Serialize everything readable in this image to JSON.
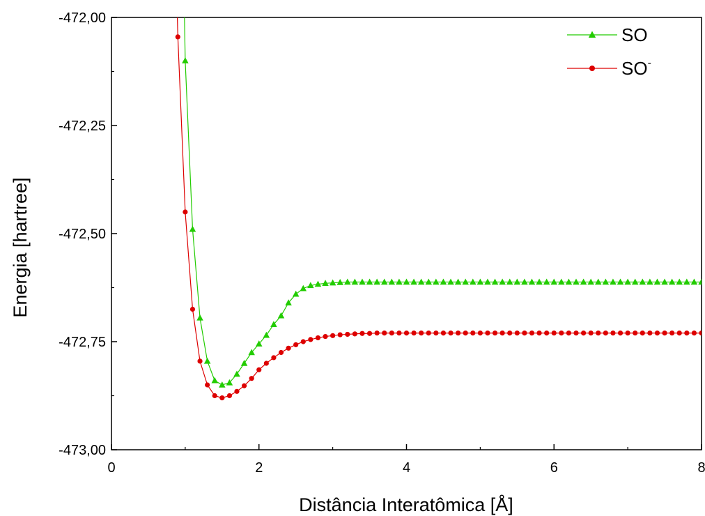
{
  "chart_data": {
    "type": "line",
    "xlabel": "Distância Interatômica [Å]",
    "ylabel": "Energia [hartree]",
    "xlim": [
      0,
      8
    ],
    "ylim": [
      -473.0,
      -472.0
    ],
    "x_ticks": [
      0,
      2,
      4,
      6,
      8
    ],
    "y_ticks": [
      -473.0,
      -472.75,
      -472.5,
      -472.25,
      -472.0
    ],
    "x_tick_labels": [
      "0",
      "2",
      "4",
      "6",
      "8"
    ],
    "y_tick_labels": [
      "-473,00",
      "-472,75",
      "-472,50",
      "-472,25",
      "-472,00"
    ],
    "grid": false,
    "legend_position": "top-right",
    "series": [
      {
        "name": "SO",
        "sup": "",
        "color": "#22cc00",
        "marker": "triangle",
        "x": [
          1.0,
          1.1,
          1.2,
          1.3,
          1.4,
          1.5,
          1.6,
          1.7,
          1.8,
          1.9,
          2.0,
          2.1,
          2.2,
          2.3,
          2.4,
          2.5,
          2.6,
          2.7,
          2.8,
          2.9,
          3.0,
          3.1,
          3.2,
          3.3,
          3.4,
          3.5,
          3.6,
          3.7,
          3.8,
          3.9,
          4.0,
          4.1,
          4.2,
          4.3,
          4.4,
          4.5,
          4.6,
          4.7,
          4.8,
          4.9,
          5.0,
          5.1,
          5.2,
          5.3,
          5.4,
          5.5,
          5.6,
          5.7,
          5.8,
          5.9,
          6.0,
          6.1,
          6.2,
          6.3,
          6.4,
          6.5,
          6.6,
          6.7,
          6.8,
          6.9,
          7.0,
          7.1,
          7.2,
          7.3,
          7.4,
          7.5,
          7.6,
          7.7,
          7.8,
          7.9,
          8.0
        ],
        "y": [
          -472.1,
          -472.49,
          -472.695,
          -472.795,
          -472.84,
          -472.85,
          -472.845,
          -472.825,
          -472.8,
          -472.775,
          -472.755,
          -472.735,
          -472.71,
          -472.69,
          -472.66,
          -472.64,
          -472.627,
          -472.62,
          -472.617,
          -472.615,
          -472.614,
          -472.613,
          -472.612,
          -472.612,
          -472.612,
          -472.612,
          -472.612,
          -472.612,
          -472.612,
          -472.612,
          -472.612,
          -472.612,
          -472.612,
          -472.612,
          -472.612,
          -472.612,
          -472.612,
          -472.612,
          -472.612,
          -472.612,
          -472.612,
          -472.612,
          -472.612,
          -472.612,
          -472.612,
          -472.612,
          -472.612,
          -472.612,
          -472.612,
          -472.612,
          -472.612,
          -472.612,
          -472.612,
          -472.612,
          -472.612,
          -472.612,
          -472.612,
          -472.612,
          -472.612,
          -472.612,
          -472.612,
          -472.612,
          -472.612,
          -472.612,
          -472.612,
          -472.612,
          -472.612,
          -472.612,
          -472.612,
          -472.612,
          -472.612
        ]
      },
      {
        "name": "SO",
        "sup": "-",
        "color": "#dd0000",
        "marker": "circle",
        "x": [
          0.9,
          1.0,
          1.1,
          1.2,
          1.3,
          1.4,
          1.5,
          1.6,
          1.7,
          1.8,
          1.9,
          2.0,
          2.1,
          2.2,
          2.3,
          2.4,
          2.5,
          2.6,
          2.7,
          2.8,
          2.9,
          3.0,
          3.1,
          3.2,
          3.3,
          3.4,
          3.5,
          3.6,
          3.7,
          3.8,
          3.9,
          4.0,
          4.1,
          4.2,
          4.3,
          4.4,
          4.5,
          4.6,
          4.7,
          4.8,
          4.9,
          5.0,
          5.1,
          5.2,
          5.3,
          5.4,
          5.5,
          5.6,
          5.7,
          5.8,
          5.9,
          6.0,
          6.1,
          6.2,
          6.3,
          6.4,
          6.5,
          6.6,
          6.7,
          6.8,
          6.9,
          7.0,
          7.1,
          7.2,
          7.3,
          7.4,
          7.5,
          7.6,
          7.7,
          7.8,
          7.9,
          8.0
        ],
        "y": [
          -472.045,
          -472.45,
          -472.675,
          -472.795,
          -472.85,
          -472.875,
          -472.88,
          -472.875,
          -472.865,
          -472.852,
          -472.835,
          -472.815,
          -472.8,
          -472.787,
          -472.775,
          -472.765,
          -472.757,
          -472.75,
          -472.745,
          -472.741,
          -472.738,
          -472.736,
          -472.734,
          -472.733,
          -472.732,
          -472.731,
          -472.731,
          -472.73,
          -472.73,
          -472.73,
          -472.73,
          -472.73,
          -472.73,
          -472.73,
          -472.73,
          -472.73,
          -472.73,
          -472.73,
          -472.73,
          -472.73,
          -472.73,
          -472.73,
          -472.73,
          -472.73,
          -472.73,
          -472.73,
          -472.73,
          -472.73,
          -472.73,
          -472.73,
          -472.73,
          -472.73,
          -472.73,
          -472.73,
          -472.73,
          -472.73,
          -472.73,
          -472.73,
          -472.73,
          -472.73,
          -472.73,
          -472.73,
          -472.73,
          -472.73,
          -472.73,
          -472.73,
          -472.73,
          -472.73,
          -472.73,
          -472.73,
          -472.73,
          -472.73
        ]
      }
    ]
  }
}
